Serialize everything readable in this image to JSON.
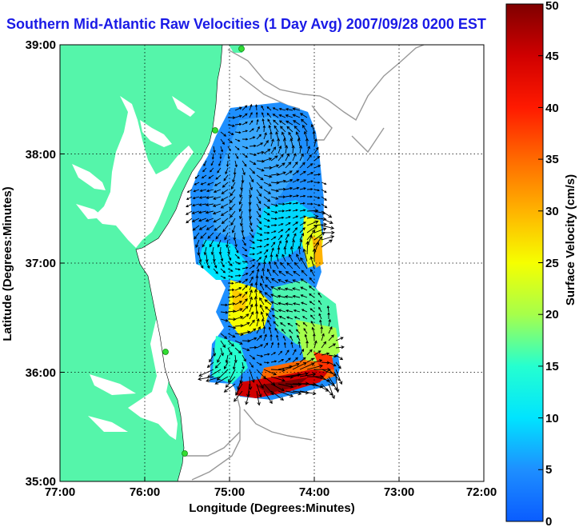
{
  "title": "Southern Mid-Atlantic Raw Velocities (1 Day Avg) 2007/09/28 0200 EST",
  "x_axis": {
    "label": "Longitude (Degrees:Minutes)",
    "ticks": [
      "77:00",
      "76:00",
      "75:00",
      "74:00",
      "73:00",
      "72:00"
    ]
  },
  "y_axis": {
    "label": "Latitude (Degrees:Minutes)",
    "ticks": [
      "39:00",
      "38:00",
      "37:00",
      "36:00",
      "35:00"
    ]
  },
  "colorbar": {
    "label": "Surface Velocity (cm/s)",
    "ticks": [
      "0",
      "5",
      "10",
      "15",
      "20",
      "25",
      "30",
      "35",
      "40",
      "45",
      "50"
    ],
    "range": [
      0,
      50
    ]
  },
  "colors": {
    "land": "#55f5aa",
    "water": "#ffffff",
    "title": "#1a1ae6",
    "contour": "#999999",
    "station": "#33dd33"
  }
}
